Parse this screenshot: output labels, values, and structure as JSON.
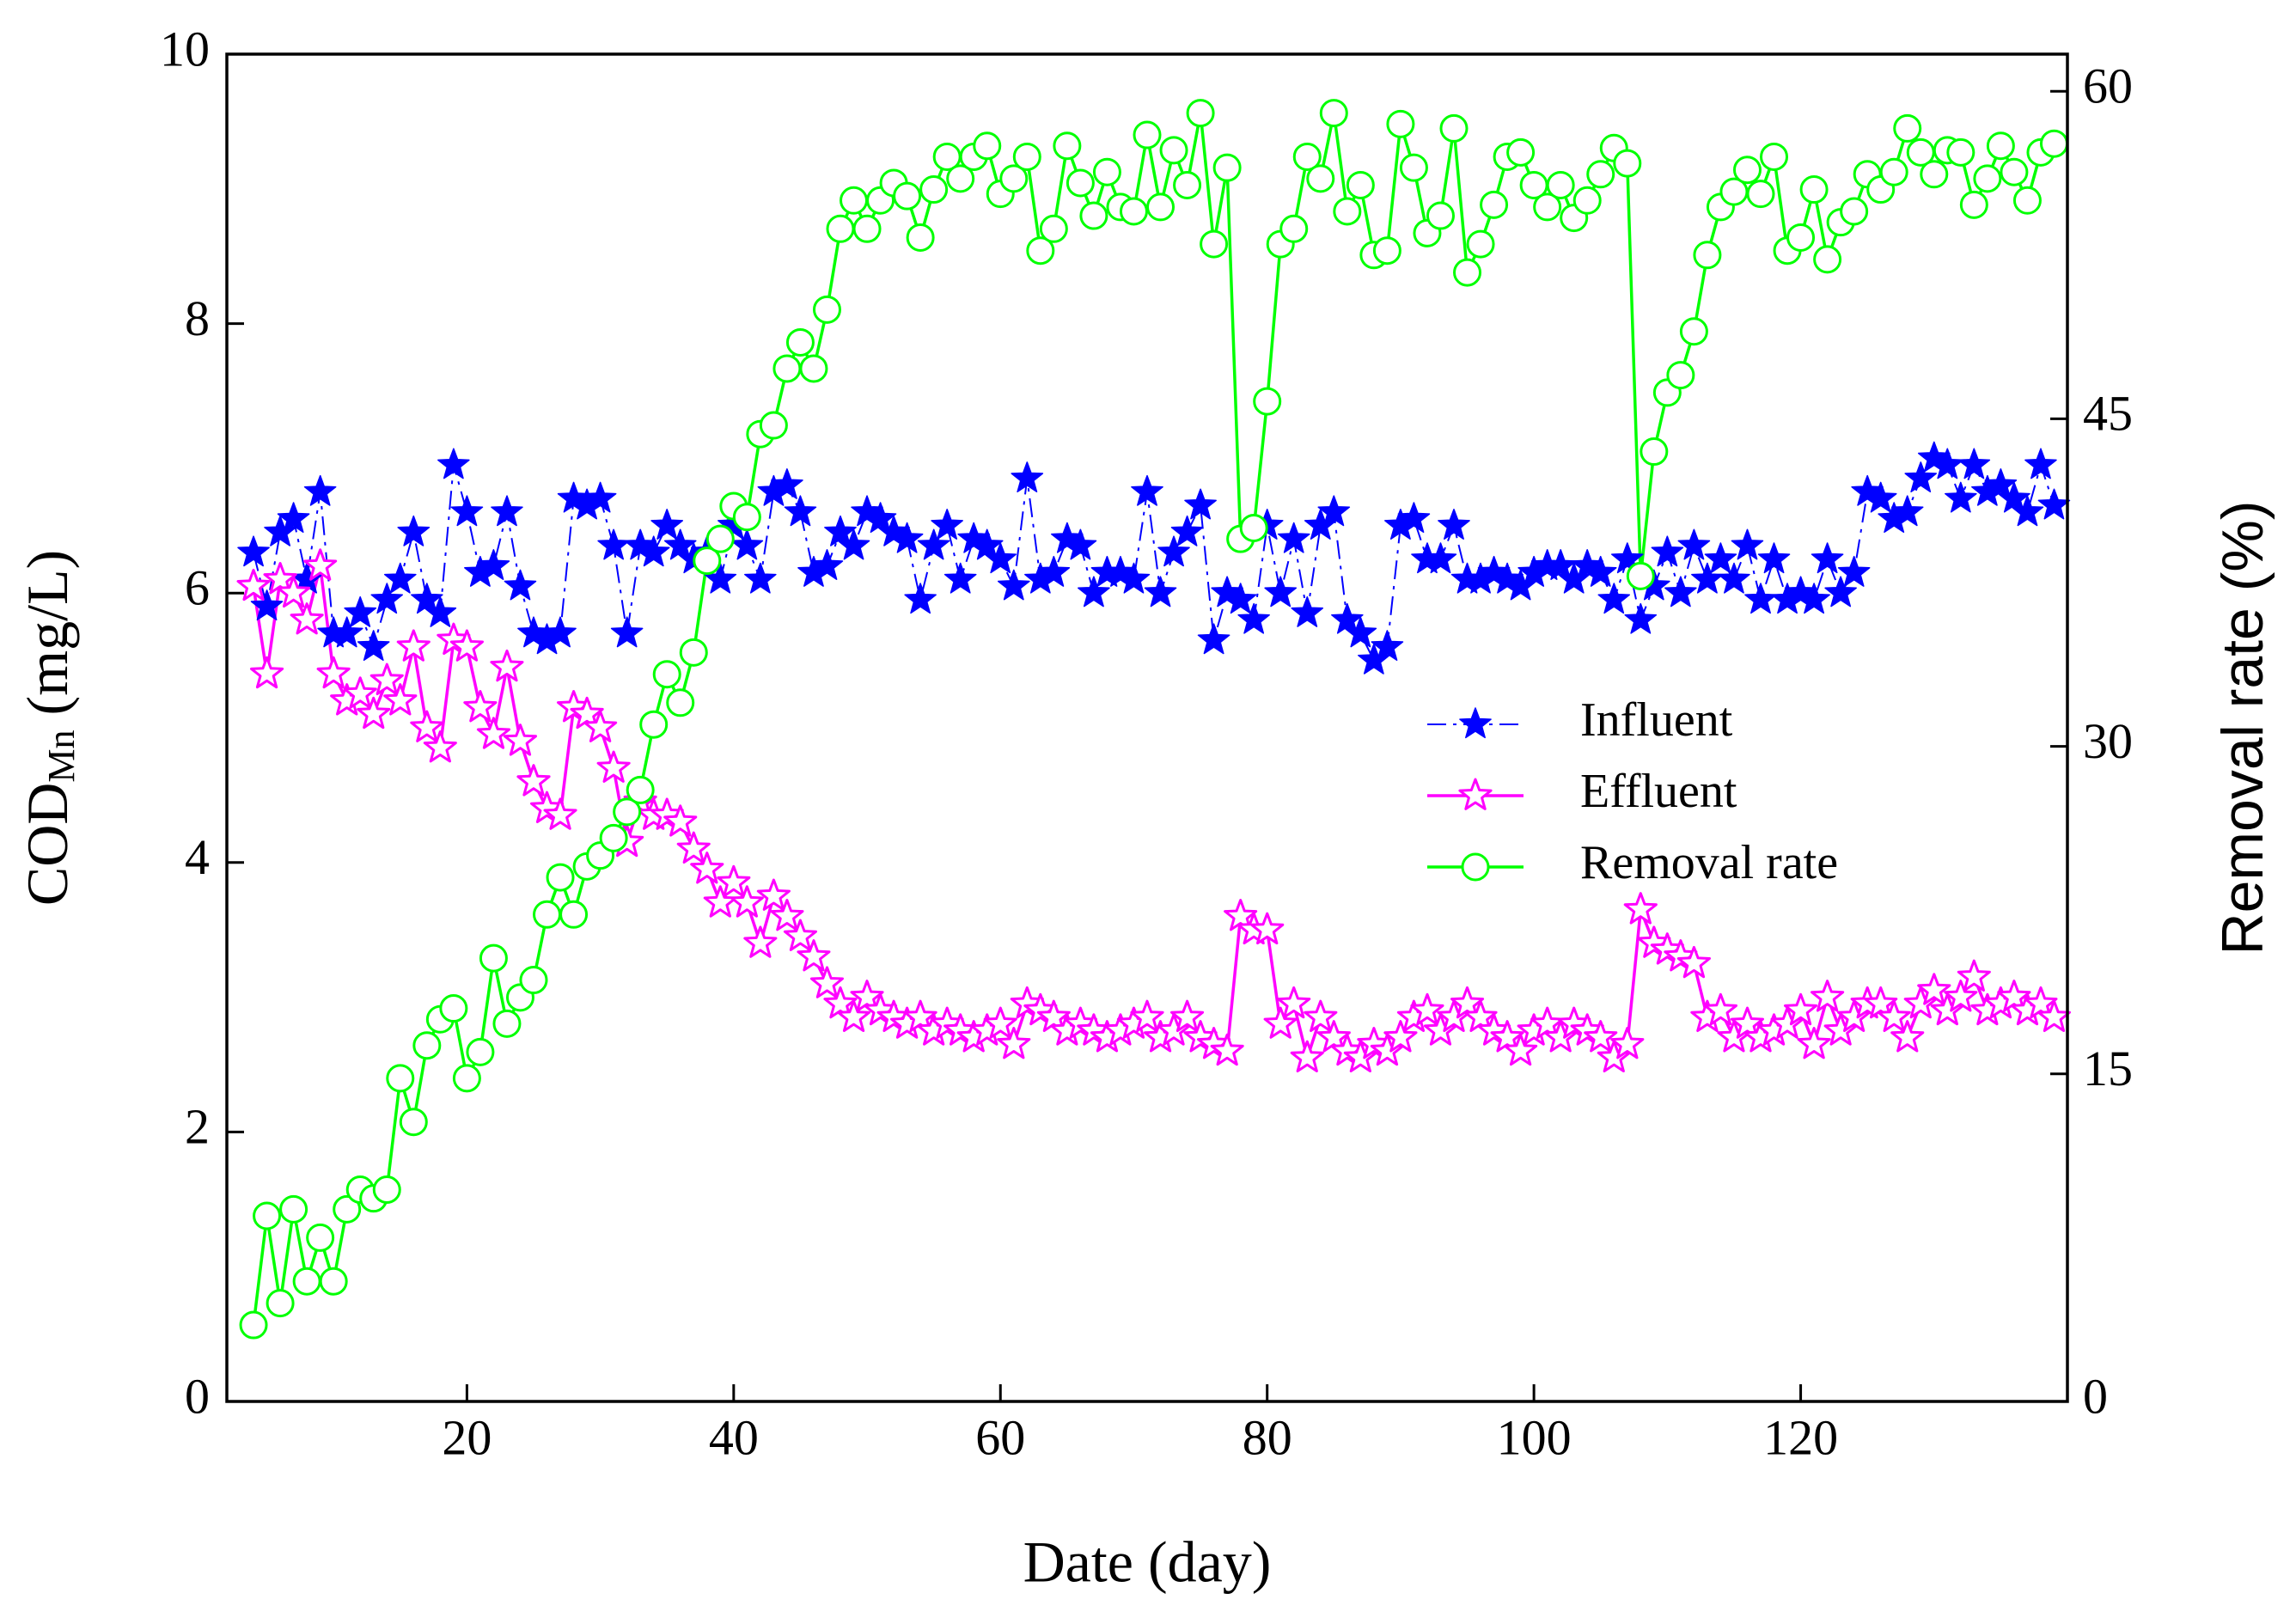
{
  "chart_data": {
    "type": "line",
    "xlabel": "Date  (day)",
    "ylabel": [
      "COD",
      "Mn",
      " (mg/L)"
    ],
    "y2label": "Removal rate (%)",
    "xlim": [
      2,
      140
    ],
    "xticks": [
      20,
      40,
      60,
      80,
      100,
      120
    ],
    "ylim": [
      0,
      10
    ],
    "yticks": [
      0,
      2,
      4,
      6,
      8,
      10
    ],
    "y2lim": [
      0,
      61.7
    ],
    "y2ticks": [
      0,
      15,
      30,
      45,
      60
    ],
    "legend": "right",
    "x": [
      4,
      5,
      6,
      7,
      8,
      9,
      10,
      11,
      12,
      13,
      14,
      15,
      16,
      17,
      18,
      19,
      20,
      21,
      22,
      23,
      24,
      25,
      26,
      27,
      28,
      29,
      30,
      31,
      32,
      33,
      34,
      35,
      36,
      37,
      38,
      39,
      40,
      41,
      42,
      43,
      44,
      45,
      46,
      47,
      48,
      49,
      50,
      51,
      52,
      53,
      54,
      55,
      56,
      57,
      58,
      59,
      60,
      61,
      62,
      63,
      64,
      65,
      66,
      67,
      68,
      69,
      70,
      71,
      72,
      73,
      74,
      75,
      76,
      77,
      78,
      79,
      80,
      81,
      82,
      83,
      84,
      85,
      86,
      87,
      88,
      89,
      90,
      91,
      92,
      93,
      94,
      95,
      96,
      97,
      98,
      99,
      100,
      101,
      102,
      103,
      104,
      105,
      106,
      107,
      108,
      109,
      110,
      111,
      112,
      113,
      114,
      115,
      116,
      117,
      118,
      119,
      120,
      121,
      122,
      123,
      124,
      125,
      126,
      127,
      128,
      129,
      130,
      131,
      132,
      133,
      134,
      135,
      136,
      137,
      138,
      139
    ],
    "series": [
      {
        "name": "Influent",
        "color": "#0000ff",
        "marker": "star-filled",
        "dash": "dashdot",
        "values": [
          6.3,
          5.9,
          6.45,
          6.55,
          6.1,
          6.75,
          5.7,
          5.7,
          5.85,
          5.6,
          5.95,
          6.1,
          6.45,
          5.95,
          5.85,
          6.95,
          6.6,
          6.15,
          6.2,
          6.6,
          6.05,
          5.7,
          5.65,
          5.7,
          6.7,
          6.65,
          6.7,
          6.35,
          5.7,
          6.35,
          6.3,
          6.5,
          6.35,
          6.25,
          6.3,
          6.1,
          6.5,
          6.35,
          6.1,
          6.75,
          6.8,
          6.6,
          6.15,
          6.2,
          6.45,
          6.35,
          6.6,
          6.55,
          6.45,
          6.4,
          5.95,
          6.35,
          6.5,
          6.1,
          6.4,
          6.35,
          6.25,
          6.05,
          6.85,
          6.1,
          6.15,
          6.4,
          6.35,
          6.0,
          6.15,
          6.15,
          6.1,
          6.75,
          6.0,
          6.3,
          6.45,
          6.65,
          5.65,
          6.0,
          5.95,
          5.8,
          6.5,
          6.0,
          6.4,
          5.85,
          6.5,
          6.6,
          5.8,
          5.7,
          5.5,
          5.6,
          6.5,
          6.55,
          6.25,
          6.25,
          6.5,
          6.1,
          6.1,
          6.15,
          6.1,
          6.05,
          6.15,
          6.2,
          6.2,
          6.1,
          6.2,
          6.15,
          5.95,
          6.25,
          5.8,
          6.05,
          6.3,
          6.0,
          6.35,
          6.1,
          6.25,
          6.1,
          6.35,
          5.95,
          6.25,
          5.95,
          6.0,
          5.95,
          6.25,
          6.0,
          6.15,
          6.75,
          6.7,
          6.55,
          6.6,
          6.85,
          7.0,
          6.95,
          6.7,
          6.95,
          6.75,
          6.8,
          6.7,
          6.6,
          6.95,
          6.65
        ]
      },
      {
        "name": "Effluent",
        "color": "#ff00ff",
        "marker": "star-open",
        "dash": "solid",
        "values": [
          6.05,
          5.4,
          6.1,
          6.0,
          5.8,
          6.2,
          5.4,
          5.2,
          5.25,
          5.1,
          5.35,
          5.2,
          5.6,
          5.0,
          4.85,
          5.65,
          5.6,
          5.15,
          4.95,
          5.45,
          4.9,
          4.6,
          4.4,
          4.35,
          5.15,
          5.1,
          5.0,
          4.7,
          4.15,
          4.45,
          4.35,
          4.35,
          4.3,
          4.1,
          3.95,
          3.7,
          3.85,
          3.7,
          3.4,
          3.75,
          3.6,
          3.45,
          3.3,
          3.1,
          2.95,
          2.85,
          3.0,
          2.9,
          2.85,
          2.8,
          2.85,
          2.75,
          2.8,
          2.75,
          2.7,
          2.75,
          2.8,
          2.65,
          2.95,
          2.9,
          2.85,
          2.75,
          2.8,
          2.75,
          2.7,
          2.75,
          2.8,
          2.85,
          2.7,
          2.75,
          2.85,
          2.7,
          2.65,
          2.6,
          3.6,
          3.5,
          3.5,
          2.8,
          2.95,
          2.55,
          2.85,
          2.7,
          2.6,
          2.55,
          2.65,
          2.6,
          2.7,
          2.85,
          2.9,
          2.75,
          2.85,
          2.95,
          2.85,
          2.75,
          2.7,
          2.6,
          2.75,
          2.8,
          2.7,
          2.8,
          2.75,
          2.7,
          2.55,
          2.65,
          3.65,
          3.4,
          3.35,
          3.3,
          3.25,
          2.85,
          2.9,
          2.7,
          2.8,
          2.7,
          2.75,
          2.8,
          2.9,
          2.65,
          3.0,
          2.75,
          2.85,
          2.95,
          2.95,
          2.85,
          2.7,
          2.95,
          3.05,
          2.9,
          3.0,
          3.15,
          2.9,
          2.95,
          3.0,
          2.9,
          2.95,
          2.85
        ]
      },
      {
        "name": "Removal rate",
        "color": "#00ff00",
        "marker": "circle-open",
        "dash": "solid",
        "axis": "y2",
        "values": [
          3.5,
          8.5,
          4.5,
          8.8,
          5.5,
          7.5,
          5.5,
          8.8,
          9.7,
          9.3,
          9.7,
          14.8,
          12.8,
          16.3,
          17.5,
          18,
          14.8,
          16,
          20.3,
          17.3,
          18.5,
          19.3,
          22.3,
          24,
          22.3,
          24.5,
          25,
          25.8,
          27,
          28,
          31,
          33.3,
          32,
          34.3,
          38.5,
          39.5,
          41,
          40.5,
          44.3,
          44.7,
          47.3,
          48.5,
          47.3,
          50,
          53.7,
          55,
          53.7,
          55,
          55.8,
          55.2,
          53.3,
          55.5,
          57,
          56,
          57,
          57.5,
          55.3,
          56,
          57,
          52.7,
          53.7,
          57.5,
          55.8,
          54.3,
          56.3,
          54.7,
          54.5,
          58,
          54.7,
          57.3,
          55.7,
          59,
          53,
          56.5,
          39.5,
          40,
          45.8,
          53,
          53.7,
          57,
          56,
          59,
          54.5,
          55.7,
          52.5,
          52.7,
          58.5,
          56.5,
          53.5,
          54.3,
          58.3,
          51.7,
          53,
          54.8,
          57,
          57.2,
          55.7,
          54.7,
          55.7,
          54.2,
          55,
          56.2,
          57.4,
          56.7,
          37.8,
          43.5,
          46.2,
          47,
          49,
          52.5,
          54.7,
          55.4,
          56.4,
          55.3,
          57,
          52.7,
          53.3,
          55.5,
          52.3,
          54,
          54.5,
          56.2,
          55.5,
          56.3,
          58.3,
          57.2,
          56.2,
          57.3,
          57.2,
          54.8,
          56,
          57.5,
          56.3,
          55,
          57.2,
          57.6
        ]
      }
    ]
  }
}
